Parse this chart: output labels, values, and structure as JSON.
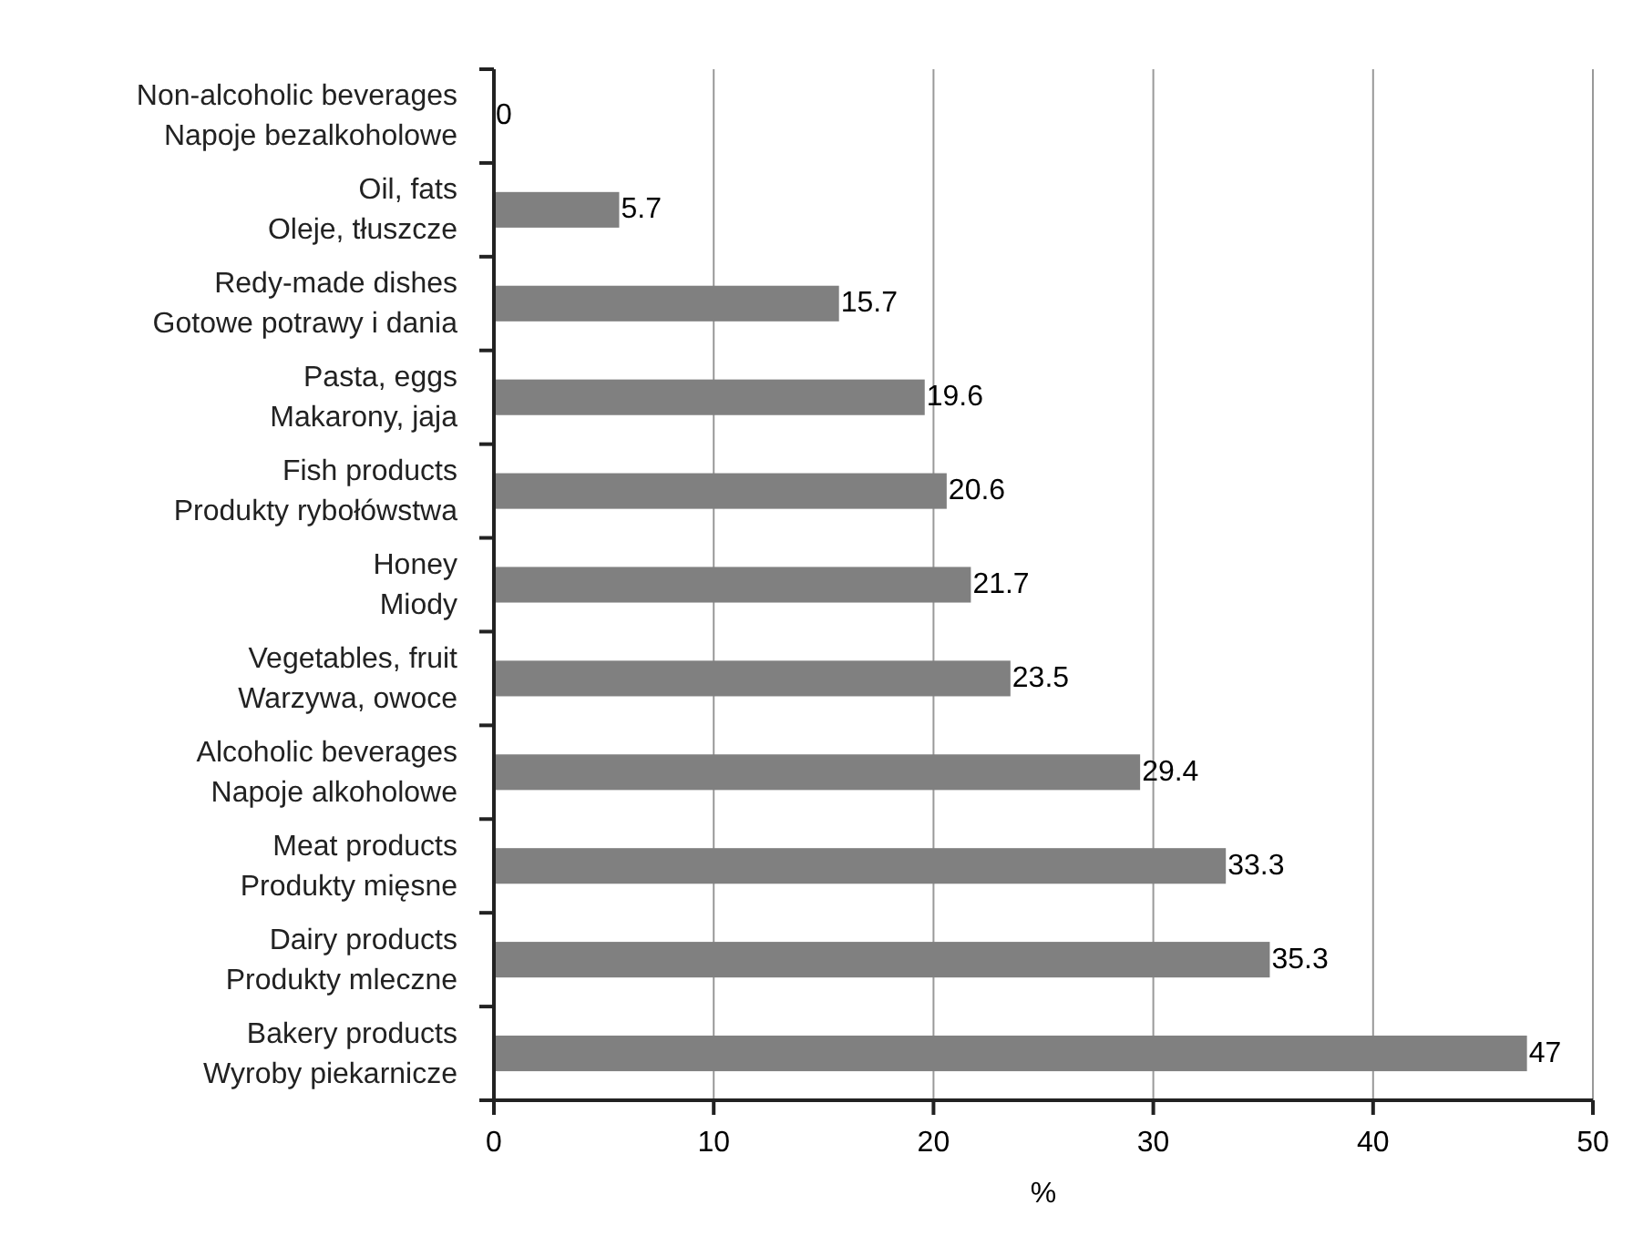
{
  "chart_data": {
    "type": "bar",
    "orientation": "horizontal",
    "xlabel": "%",
    "categories": [
      "Non-alcoholic beverages\nNapoje bezalkoholowe",
      "Oil, fats\nOleje, tłuszcze",
      "Redy-made dishes\nGotowe potrawy i dania",
      "Pasta, eggs\nMakarony, jaja",
      "Fish products\nProdukty rybołówstwa",
      "Honey\nMiody",
      "Vegetables, fruit\nWarzywa, owoce",
      "Alcoholic beverages\nNapoje alkoholowe",
      "Meat products\nProdukty mięsne",
      "Dairy products\nProdukty mleczne",
      "Bakery products\nWyroby piekarnicze"
    ],
    "values": [
      0,
      5.7,
      15.7,
      19.6,
      20.6,
      21.7,
      23.5,
      29.4,
      33.3,
      35.3,
      47
    ],
    "color": "#808080",
    "xlim": [
      0,
      50
    ],
    "xticks": [
      0,
      10,
      20,
      30,
      40,
      50
    ],
    "grid": "x",
    "data_labels": true
  }
}
